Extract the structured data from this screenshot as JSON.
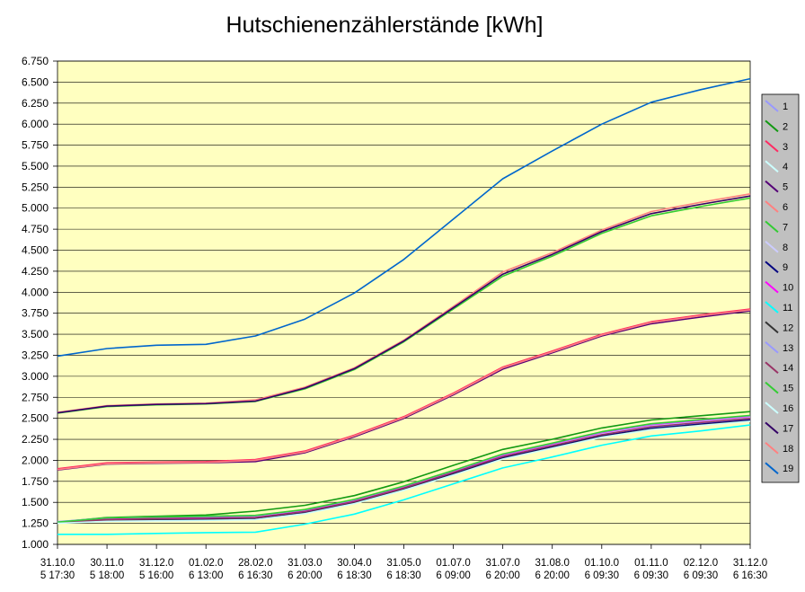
{
  "chart_data": {
    "type": "line",
    "title": "Hutschienenzählerstände [kWh]",
    "xlabel": "",
    "ylabel": "",
    "ylim": [
      1000,
      6750
    ],
    "yticks": [
      "1.000",
      "1.250",
      "1.500",
      "1.750",
      "2.000",
      "2.250",
      "2.500",
      "2.750",
      "3.000",
      "3.250",
      "3.500",
      "3.750",
      "4.000",
      "4.250",
      "4.500",
      "4.750",
      "5.000",
      "5.250",
      "5.500",
      "5.750",
      "6.000",
      "6.250",
      "6.500",
      "6.750"
    ],
    "categories": [
      [
        "31.10.0",
        "5 17:30"
      ],
      [
        "30.11.0",
        "5 18:00"
      ],
      [
        "31.12.0",
        "5 16:00"
      ],
      [
        "01.02.0",
        "6 13:00"
      ],
      [
        "28.02.0",
        "6 16:30"
      ],
      [
        "31.03.0",
        "6 20:00"
      ],
      [
        "30.04.0",
        "6 18:30"
      ],
      [
        "31.05.0",
        "6 18:30"
      ],
      [
        "01.07.0",
        "6 09:00"
      ],
      [
        "31.07.0",
        "6 20:00"
      ],
      [
        "31.08.0",
        "6 20:00"
      ],
      [
        "01.10.0",
        "6 09:30"
      ],
      [
        "01.11.0",
        "6 09:30"
      ],
      [
        "02.12.0",
        "6 09:30"
      ],
      [
        "31.12.0",
        "6 16:30"
      ]
    ],
    "grid": true,
    "legend_position": "right",
    "plot_background": "#ffffc0",
    "series": [
      {
        "name": "1",
        "color": "#9999ff",
        "values": [
          1265,
          1290,
          1295,
          1300,
          1315,
          1390,
          1510,
          1670,
          1850,
          2040,
          2170,
          2300,
          2390,
          2440,
          2490
        ]
      },
      {
        "name": "2",
        "color": "#129912",
        "values": [
          1265,
          1320,
          1335,
          1350,
          1395,
          1465,
          1580,
          1745,
          1940,
          2130,
          2250,
          2385,
          2480,
          2530,
          2580
        ]
      },
      {
        "name": "3",
        "color": "#ff2a62",
        "values": [
          1900,
          1970,
          1980,
          1985,
          2010,
          2110,
          2300,
          2520,
          2800,
          3110,
          3300,
          3500,
          3650,
          3730,
          3800
        ]
      },
      {
        "name": "4",
        "color": "#ccffff",
        "values": [
          1260,
          1300,
          1310,
          1315,
          1325,
          1395,
          1515,
          1675,
          1860,
          2050,
          2180,
          2310,
          2405,
          2455,
          2510
        ]
      },
      {
        "name": "5",
        "color": "#550077",
        "values": [
          1885,
          1955,
          1965,
          1970,
          1985,
          2090,
          2280,
          2500,
          2780,
          3085,
          3280,
          3480,
          3625,
          3705,
          3780
        ]
      },
      {
        "name": "6",
        "color": "#ff8080",
        "values": [
          2570,
          2650,
          2670,
          2680,
          2720,
          2870,
          3100,
          3430,
          3830,
          4240,
          4470,
          4740,
          4960,
          5070,
          5170
        ]
      },
      {
        "name": "7",
        "color": "#33cc33",
        "values": [
          2560,
          2640,
          2660,
          2670,
          2700,
          2850,
          3080,
          3410,
          3800,
          4190,
          4430,
          4700,
          4910,
          5020,
          5120
        ]
      },
      {
        "name": "8",
        "color": "#ccccff",
        "values": [
          1270,
          1305,
          1315,
          1320,
          1330,
          1400,
          1520,
          1680,
          1865,
          2055,
          2185,
          2315,
          2410,
          2460,
          2515
        ]
      },
      {
        "name": "9",
        "color": "#000080",
        "values": [
          1255,
          1285,
          1290,
          1295,
          1305,
          1375,
          1495,
          1655,
          1840,
          2030,
          2160,
          2290,
          2380,
          2430,
          2480
        ]
      },
      {
        "name": "10",
        "color": "#ff00ff",
        "values": [
          1265,
          1300,
          1310,
          1315,
          1320,
          1395,
          1515,
          1680,
          1865,
          2065,
          2195,
          2330,
          2425,
          2475,
          2525
        ]
      },
      {
        "name": "11",
        "color": "#00ffff",
        "values": [
          1120,
          1120,
          1130,
          1140,
          1145,
          1240,
          1360,
          1530,
          1720,
          1910,
          2040,
          2180,
          2290,
          2350,
          2420
        ]
      },
      {
        "name": "12",
        "color": "#333333",
        "values": [
          1255,
          1280,
          1285,
          1290,
          1300,
          1370,
          1490,
          1650,
          1830,
          2020,
          2150,
          2280,
          2370,
          2420,
          2470
        ]
      },
      {
        "name": "13",
        "color": "#9999ff",
        "values": [
          1270,
          1315,
          1325,
          1330,
          1340,
          1410,
          1530,
          1690,
          1875,
          2070,
          2200,
          2335,
          2430,
          2480,
          2530
        ]
      },
      {
        "name": "14",
        "color": "#993366",
        "values": [
          1260,
          1295,
          1305,
          1310,
          1320,
          1390,
          1510,
          1670,
          1855,
          2045,
          2175,
          2305,
          2400,
          2450,
          2500
        ]
      },
      {
        "name": "15",
        "color": "#33cc33",
        "values": [
          1265,
          1315,
          1325,
          1335,
          1345,
          1415,
          1535,
          1695,
          1880,
          2075,
          2205,
          2340,
          2435,
          2485,
          2535
        ]
      },
      {
        "name": "16",
        "color": "#ccffff",
        "values": [
          1250,
          1275,
          1280,
          1285,
          1295,
          1365,
          1485,
          1645,
          1825,
          2015,
          2145,
          2275,
          2365,
          2415,
          2465
        ]
      },
      {
        "name": "17",
        "color": "#330066",
        "values": [
          2565,
          2645,
          2665,
          2675,
          2705,
          2860,
          3090,
          3420,
          3815,
          4215,
          4450,
          4720,
          4935,
          5045,
          5145
        ]
      },
      {
        "name": "18",
        "color": "#ff8080",
        "values": [
          1890,
          1960,
          1970,
          1975,
          2000,
          2100,
          2290,
          2510,
          2790,
          3100,
          3290,
          3490,
          3640,
          3720,
          3790
        ]
      },
      {
        "name": "19",
        "color": "#0066cc",
        "values": [
          3240,
          3330,
          3370,
          3380,
          3480,
          3680,
          3990,
          4390,
          4870,
          5350,
          5680,
          6000,
          6260,
          6410,
          6540
        ]
      }
    ]
  }
}
